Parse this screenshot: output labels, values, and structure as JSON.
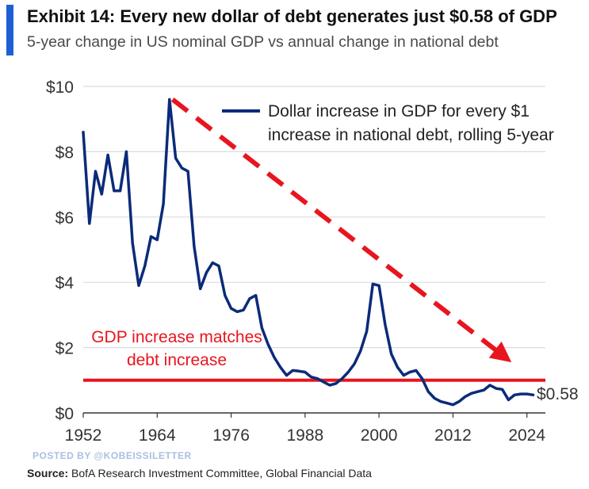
{
  "header": {
    "title": "Exhibit 14: Every new dollar of debt generates just $0.58 of GDP",
    "subtitle": "5-year change in US nominal GDP vs annual change in national debt",
    "accent_color": "#1f5fd6"
  },
  "watermark": "POSTED BY @KOBEISSILETTER",
  "source": {
    "label": "Source:",
    "text": " BofA Research Investment Committee, Global Financial Data"
  },
  "chart_data": {
    "type": "line",
    "title": "Exhibit 14: Every new dollar of debt generates just $0.58 of GDP",
    "subtitle": "5-year change in US nominal GDP vs annual change in national debt",
    "xlabel": "",
    "ylabel": "",
    "xlim": [
      1952,
      2027
    ],
    "ylim": [
      0,
      10
    ],
    "x_ticks": [
      1952,
      1964,
      1976,
      1988,
      2000,
      2012,
      2024
    ],
    "y_ticks": [
      {
        "value": 0,
        "label": "$0"
      },
      {
        "value": 2,
        "label": "$2"
      },
      {
        "value": 4,
        "label": "$4"
      },
      {
        "value": 6,
        "label": "$6"
      },
      {
        "value": 8,
        "label": "$8"
      },
      {
        "value": 10,
        "label": "$10"
      }
    ],
    "grid": "horizontal",
    "series": [
      {
        "name": "Dollar increase in GDP for every $1 increase in national debt, rolling 5-year",
        "name_lines": [
          "Dollar increase in GDP for every $1",
          "increase in national debt, rolling 5-year"
        ],
        "color": "#0b2b7a",
        "x": [
          1952,
          1953,
          1954,
          1955,
          1956,
          1957,
          1958,
          1959,
          1960,
          1961,
          1962,
          1963,
          1964,
          1965,
          1966,
          1967,
          1968,
          1969,
          1970,
          1971,
          1972,
          1973,
          1974,
          1975,
          1976,
          1977,
          1978,
          1979,
          1980,
          1981,
          1982,
          1983,
          1984,
          1985,
          1986,
          1987,
          1988,
          1989,
          1990,
          1991,
          1992,
          1993,
          1994,
          1995,
          1996,
          1997,
          1998,
          1999,
          2000,
          2001,
          2002,
          2003,
          2004,
          2005,
          2006,
          2007,
          2008,
          2009,
          2010,
          2011,
          2012,
          2013,
          2014,
          2015,
          2016,
          2017,
          2018,
          2019,
          2020,
          2021,
          2022,
          2023,
          2024,
          2025
        ],
        "values": [
          8.6,
          5.8,
          7.4,
          6.7,
          7.9,
          6.8,
          6.8,
          8.0,
          5.2,
          3.9,
          4.5,
          5.4,
          5.3,
          6.4,
          9.6,
          7.8,
          7.5,
          7.4,
          5.1,
          3.8,
          4.3,
          4.6,
          4.5,
          3.6,
          3.2,
          3.1,
          3.15,
          3.5,
          3.6,
          2.6,
          2.1,
          1.7,
          1.4,
          1.15,
          1.3,
          1.28,
          1.25,
          1.1,
          1.05,
          0.95,
          0.85,
          0.9,
          1.05,
          1.25,
          1.5,
          1.9,
          2.5,
          3.95,
          3.9,
          2.7,
          1.8,
          1.4,
          1.15,
          1.25,
          1.3,
          1.05,
          0.65,
          0.45,
          0.35,
          0.3,
          0.25,
          0.35,
          0.5,
          0.6,
          0.65,
          0.7,
          0.85,
          0.75,
          0.72,
          0.4,
          0.55,
          0.58,
          0.58,
          0.55
        ]
      }
    ],
    "reference_line": {
      "value": 1,
      "color": "#e8151f",
      "label_lines": [
        "GDP increase matches",
        "debt increase"
      ]
    },
    "trend_arrow": {
      "color": "#e8151f",
      "from": {
        "x": 1966.5,
        "y": 9.6
      },
      "to": {
        "x": 2021.5,
        "y": 1.55
      }
    },
    "end_label": {
      "text": "$0.58",
      "value": 0.58
    }
  }
}
